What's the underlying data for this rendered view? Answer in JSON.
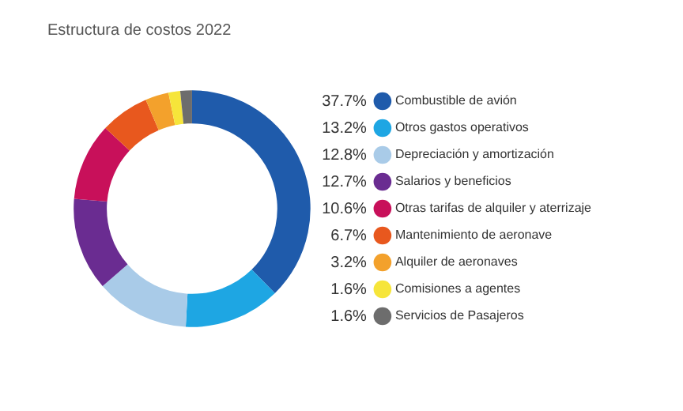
{
  "chart_data": {
    "type": "donut",
    "title": "Estructura de costos 2022",
    "categories": [
      "Combustible de avión",
      "Otros gastos operativos",
      "Depreciación y amortización",
      "Salarios y beneficios",
      "Otras tarifas de alquiler y aterrizaje",
      "Mantenimiento de aeronave",
      "Alquiler de aeronaves",
      "Comisiones a agentes",
      "Servicios de Pasajeros"
    ],
    "values": [
      37.7,
      13.2,
      12.8,
      12.7,
      10.6,
      6.7,
      3.2,
      1.6,
      1.6
    ],
    "value_labels": [
      "37.7%",
      "13.2%",
      "12.8%",
      "12.7%",
      "10.6%",
      "6.7%",
      "3.2%",
      "1.6%",
      "1.6%"
    ],
    "colors": [
      "#1f5bab",
      "#1ea6e3",
      "#a9cbe8",
      "#6a2c91",
      "#c8105a",
      "#e8581e",
      "#f3a12c",
      "#f6e53a",
      "#6d6d6d"
    ],
    "legend": "right"
  }
}
